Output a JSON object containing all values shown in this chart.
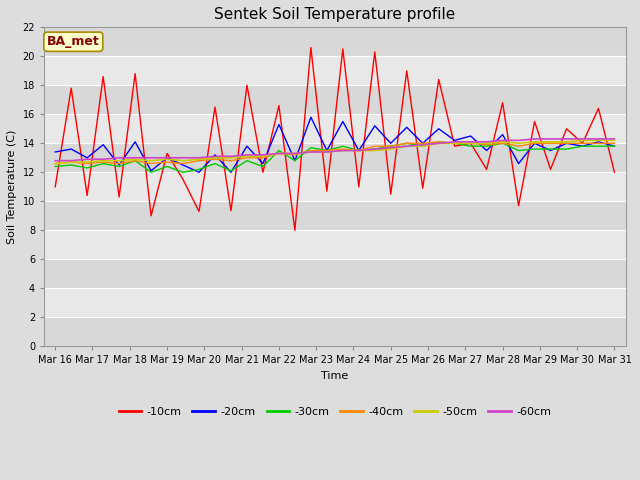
{
  "title": "Sentek Soil Temperature profile",
  "xlabel": "Time",
  "ylabel": "Soil Temperature (C)",
  "annotation": "BA_met",
  "ylim": [
    0,
    22
  ],
  "yticks": [
    0,
    2,
    4,
    6,
    8,
    10,
    12,
    14,
    16,
    18,
    20,
    22
  ],
  "x_labels": [
    "Mar 16",
    "Mar 17",
    "Mar 18",
    "Mar 19",
    "Mar 20",
    "Mar 21",
    "Mar 22",
    "Mar 23",
    "Mar 24",
    "Mar 25",
    "Mar 26",
    "Mar 27",
    "Mar 28",
    "Mar 29",
    "Mar 30",
    "Mar 31"
  ],
  "series": {
    "-10cm": {
      "color": "#ff0000",
      "linewidth": 1.0,
      "values": [
        11.0,
        17.8,
        10.4,
        18.6,
        10.3,
        18.8,
        9.0,
        13.3,
        11.5,
        9.3,
        16.5,
        9.35,
        18.0,
        12.0,
        16.6,
        8.0,
        20.6,
        10.7,
        20.5,
        11.0,
        20.3,
        10.5,
        19.0,
        10.9,
        18.4,
        13.8,
        14.0,
        12.2,
        16.8,
        9.7,
        15.5,
        12.2,
        15.0,
        14.0,
        16.4,
        12.0
      ]
    },
    "-20cm": {
      "color": "#0000ff",
      "linewidth": 1.0,
      "values": [
        13.4,
        13.6,
        13.0,
        13.9,
        12.5,
        14.1,
        12.1,
        13.0,
        12.5,
        12.0,
        13.2,
        12.0,
        13.8,
        12.6,
        15.3,
        12.8,
        15.8,
        13.5,
        15.5,
        13.5,
        15.2,
        14.0,
        15.1,
        14.0,
        15.0,
        14.2,
        14.5,
        13.5,
        14.6,
        12.6,
        14.0,
        13.5,
        14.0,
        13.8,
        14.1,
        13.8
      ]
    },
    "-30cm": {
      "color": "#00cc00",
      "linewidth": 1.0,
      "values": [
        12.4,
        12.5,
        12.3,
        12.6,
        12.4,
        12.8,
        12.0,
        12.4,
        12.0,
        12.2,
        12.6,
        12.1,
        12.8,
        12.4,
        13.5,
        12.8,
        13.7,
        13.5,
        13.8,
        13.5,
        13.6,
        13.8,
        14.0,
        13.8,
        14.1,
        14.0,
        13.8,
        13.8,
        14.0,
        13.5,
        13.6,
        13.6,
        13.6,
        13.8,
        13.8,
        13.8
      ]
    },
    "-40cm": {
      "color": "#ff8800",
      "linewidth": 1.0,
      "values": [
        12.6,
        12.7,
        12.6,
        12.7,
        12.6,
        12.8,
        12.6,
        12.7,
        12.6,
        12.8,
        12.9,
        12.8,
        13.0,
        13.0,
        13.3,
        13.2,
        13.5,
        13.5,
        13.6,
        13.5,
        13.8,
        13.8,
        14.0,
        14.0,
        14.1,
        14.0,
        14.0,
        13.9,
        14.0,
        13.8,
        14.0,
        14.0,
        14.0,
        14.0,
        14.0,
        14.0
      ]
    },
    "-50cm": {
      "color": "#cccc00",
      "linewidth": 1.2,
      "values": [
        12.6,
        12.7,
        12.7,
        12.8,
        12.8,
        12.9,
        12.8,
        12.9,
        12.8,
        12.9,
        13.0,
        13.0,
        13.1,
        13.1,
        13.3,
        13.3,
        13.4,
        13.4,
        13.5,
        13.5,
        13.5,
        13.6,
        13.8,
        13.8,
        14.0,
        14.0,
        14.0,
        14.0,
        14.1,
        14.0,
        14.1,
        14.1,
        14.1,
        14.2,
        14.2,
        14.2
      ]
    },
    "-60cm": {
      "color": "#cc44cc",
      "linewidth": 1.2,
      "values": [
        12.8,
        12.8,
        12.9,
        12.9,
        13.0,
        13.0,
        13.0,
        13.0,
        13.0,
        13.0,
        13.1,
        13.1,
        13.2,
        13.2,
        13.3,
        13.3,
        13.4,
        13.4,
        13.5,
        13.5,
        13.6,
        13.7,
        13.8,
        13.9,
        14.0,
        14.1,
        14.1,
        14.1,
        14.2,
        14.2,
        14.3,
        14.3,
        14.3,
        14.3,
        14.3,
        14.3
      ]
    }
  },
  "background_color": "#dddddd",
  "plot_bg_color": "#e8e8e8",
  "band_colors": [
    "#e0e0e0",
    "#d0d0d0"
  ],
  "title_fontsize": 11,
  "axis_label_fontsize": 8,
  "tick_fontsize": 7,
  "legend_fontsize": 8
}
